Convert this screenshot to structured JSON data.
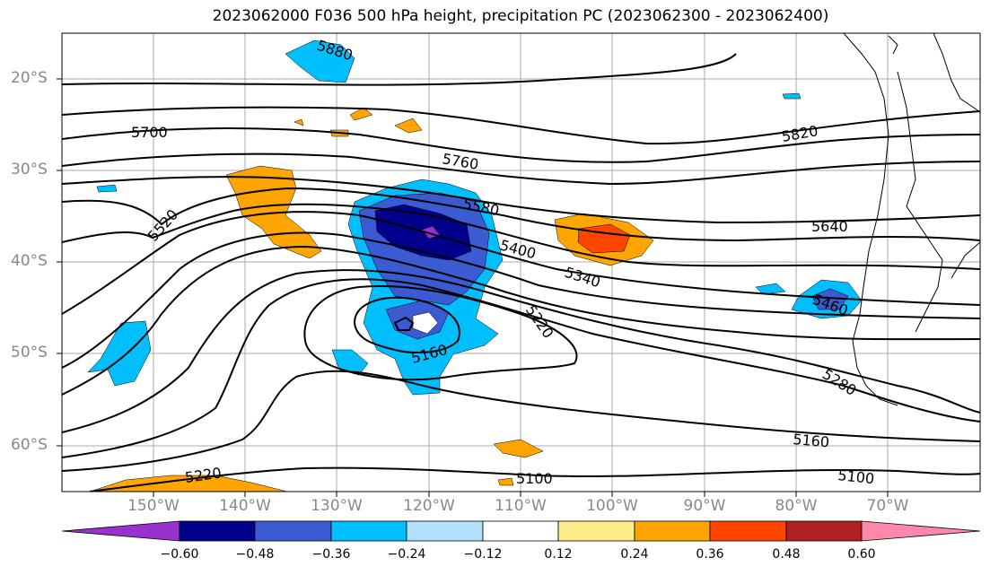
{
  "title": "2023062000 F036 500 hPa height, precipitation PC (2023062300 - 2023062400)",
  "lat_labels": [
    "20°S",
    "30°S",
    "40°S",
    "50°S",
    "60°S"
  ],
  "lon_labels": [
    "150°W",
    "140°W",
    "130°W",
    "120°W",
    "110°W",
    "100°W",
    "90°W",
    "80°W",
    "70°W"
  ],
  "contour_labels": [
    "5880",
    "5820",
    "5700",
    "5760",
    "5580",
    "5520",
    "5640",
    "5400",
    "5340",
    "5460",
    "5220",
    "5160",
    "5280",
    "5160",
    "5220",
    "5100",
    "5100"
  ],
  "colorbar": {
    "ticks": [
      "−0.60",
      "−0.48",
      "−0.36",
      "−0.24",
      "−0.12",
      "0.12",
      "0.24",
      "0.36",
      "0.48",
      "0.60"
    ],
    "colors": [
      "#9932CC",
      "#00008B",
      "#3A5BD2",
      "#00BFFF",
      "#B0E0FA",
      "#FFFFFF",
      "#FFEC8B",
      "#FFA500",
      "#FF4500",
      "#B22222",
      "#FF88AA"
    ]
  },
  "map": {
    "projection": "PlateCarree",
    "region": "South Pacific / South America",
    "extent_lat": [
      "15°S",
      "65°S"
    ],
    "extent_lon": [
      "160°W",
      "60°W"
    ],
    "coastlines": true,
    "gridlines": true
  }
}
